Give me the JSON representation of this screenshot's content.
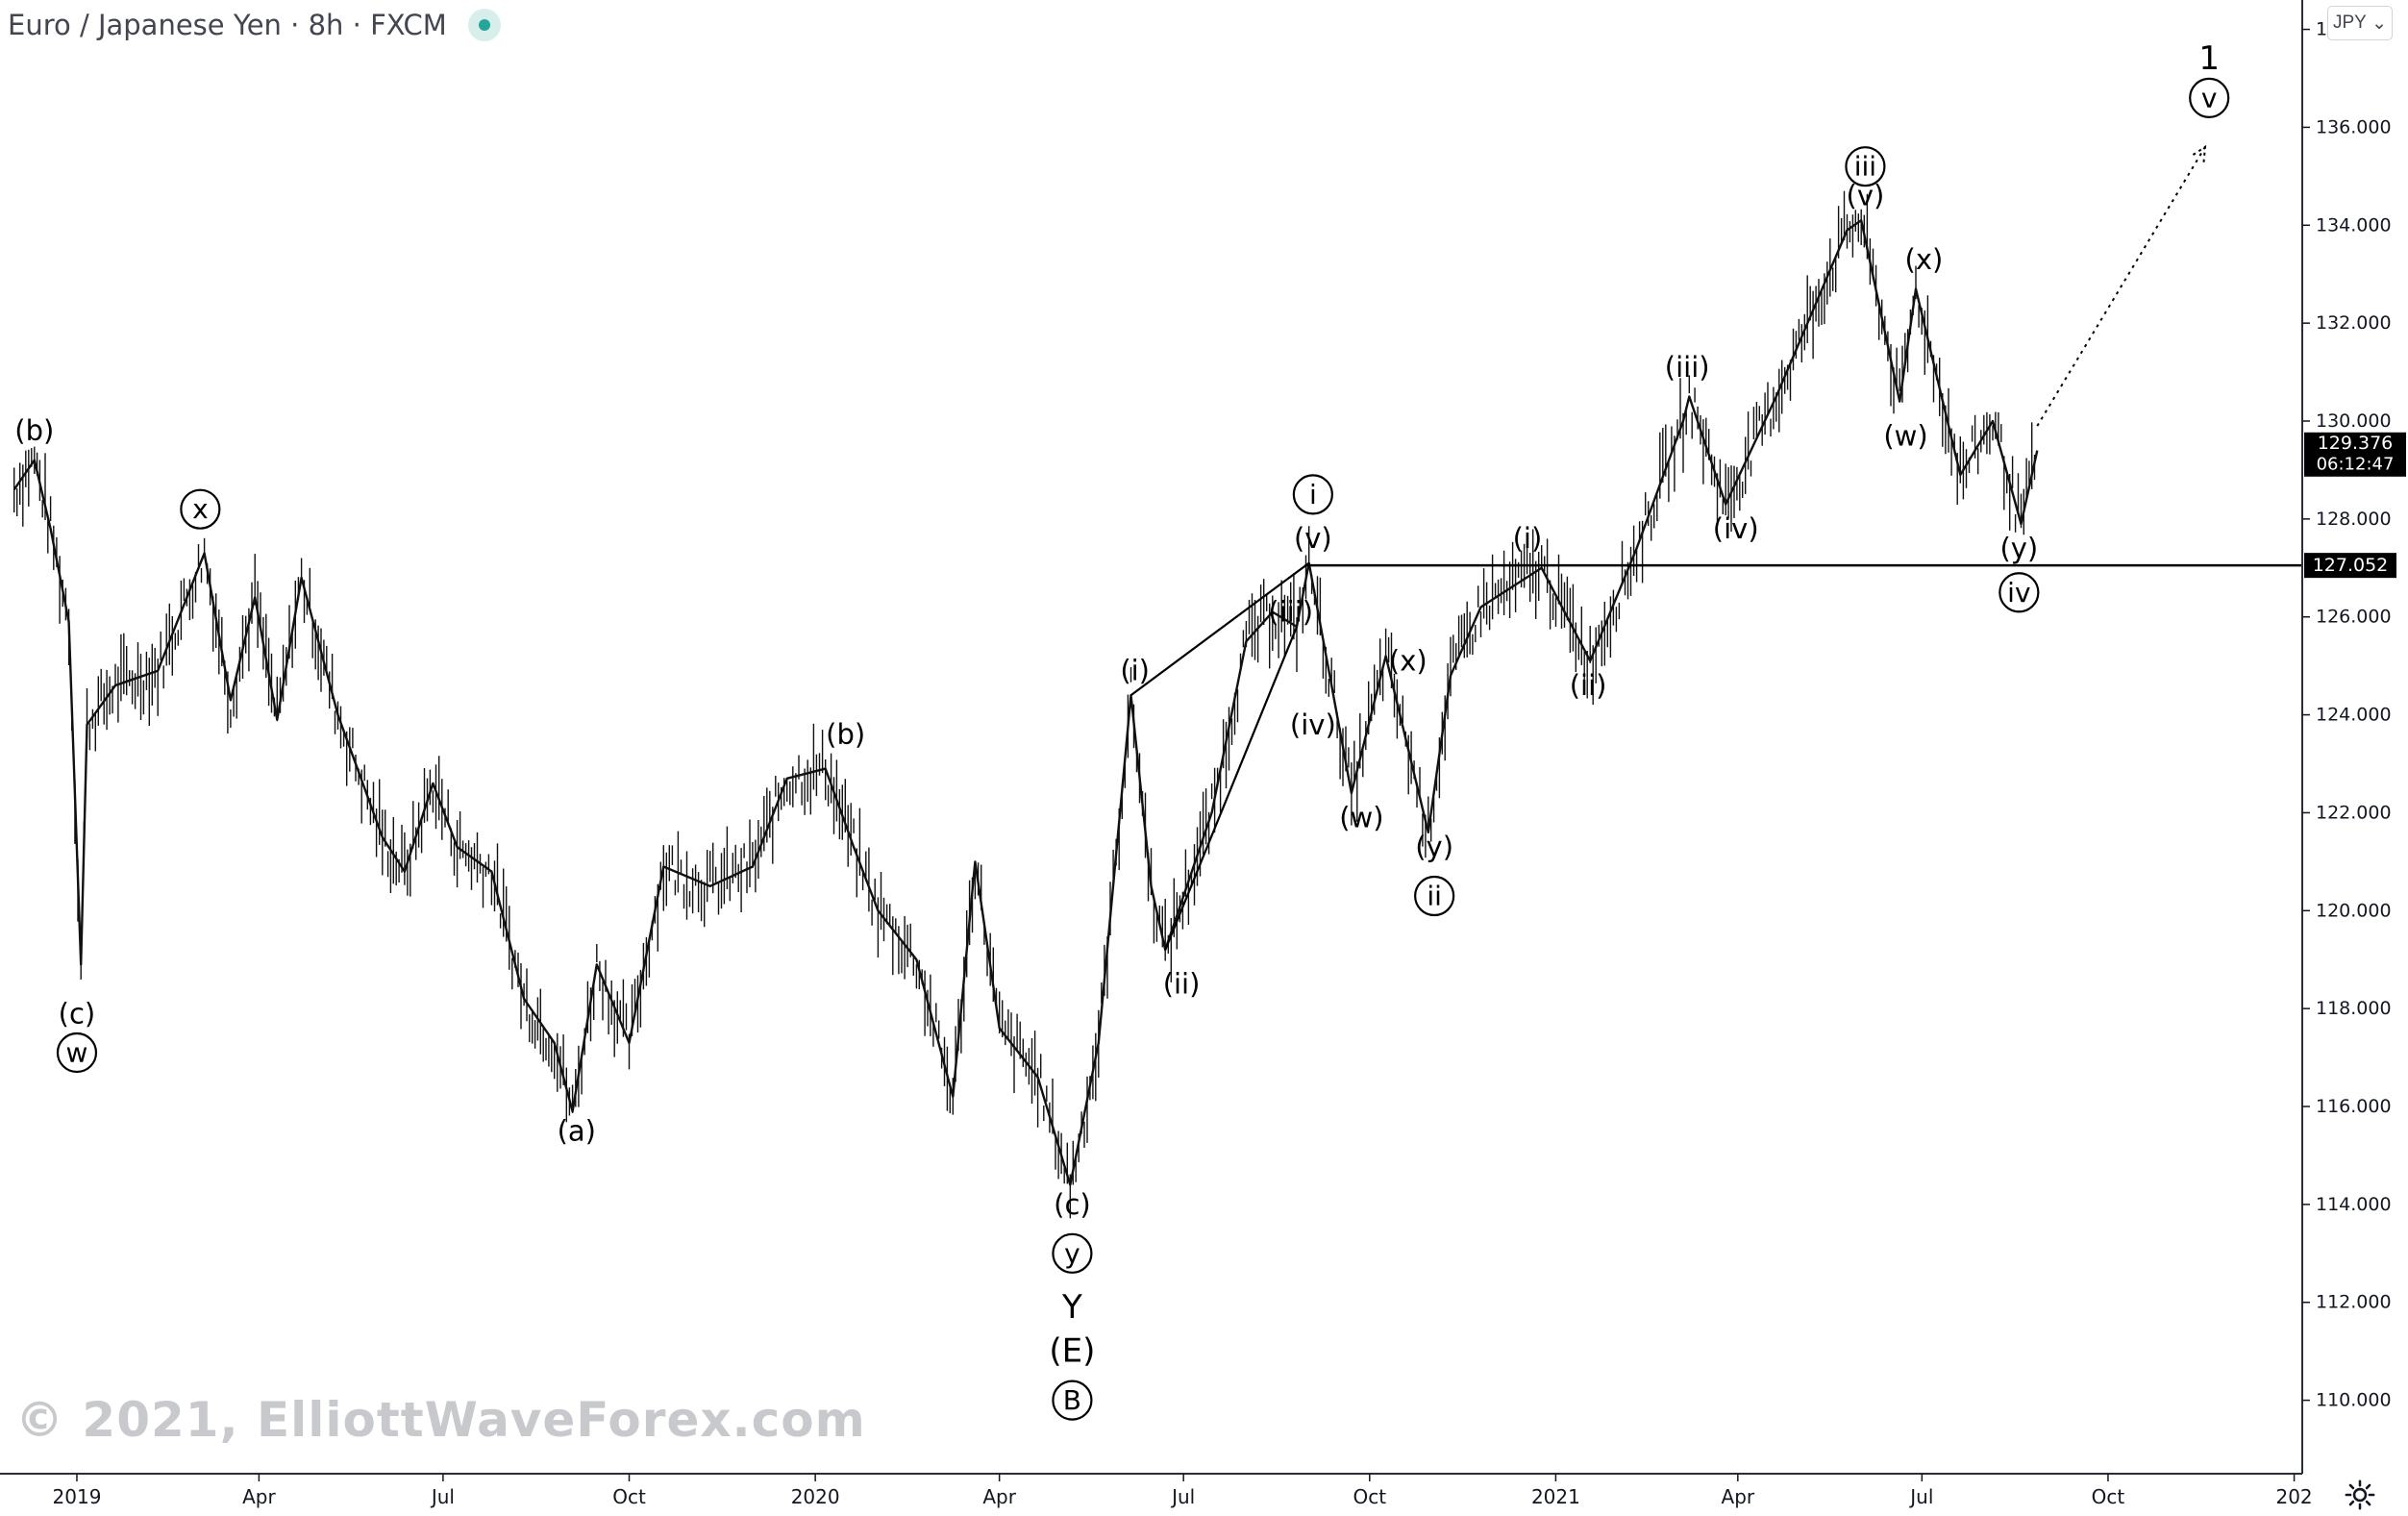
{
  "header": {
    "symbol": "Euro / Japanese Yen",
    "interval": "8h",
    "source": "FXCM",
    "currency_button": "JPY"
  },
  "watermark": "© 2021, ElliottWaveForex.com",
  "price_badges": {
    "last_price": "129.376",
    "countdown": "06:12:47",
    "level_price": "127.052"
  },
  "colors": {
    "candles": "#111111",
    "axis_text": "#131722",
    "grid_border": "#2a2e39",
    "badge_bg": "#000000",
    "watermark": "#c8c9cd",
    "live_dot": "#26a69a"
  },
  "chart_data": {
    "type": "line",
    "title": "Euro / Japanese Yen · 8h · FXCM",
    "xlabel": "",
    "ylabel": "",
    "ylim": [
      108.5,
      138.6
    ],
    "xlim": [
      "2019-01-01",
      "2022-01-05"
    ],
    "y_ticks": [
      110,
      112,
      114,
      116,
      118,
      120,
      122,
      124,
      126,
      128,
      130,
      132,
      134,
      136,
      138
    ],
    "y_tick_labels": [
      "110.000",
      "112.000",
      "114.000",
      "116.000",
      "118.000",
      "120.000",
      "122.000",
      "124.000",
      "126.000",
      "128.000",
      "130.000",
      "132.000",
      "134.000",
      "136.000",
      "138.000"
    ],
    "x_ticks": [
      {
        "date": "2019-01-01",
        "label": "2019"
      },
      {
        "date": "2019-04-01",
        "label": "Apr"
      },
      {
        "date": "2019-07-01",
        "label": "Jul"
      },
      {
        "date": "2019-10-01",
        "label": "Oct"
      },
      {
        "date": "2020-01-01",
        "label": "2020"
      },
      {
        "date": "2020-04-01",
        "label": "Apr"
      },
      {
        "date": "2020-07-01",
        "label": "Jul"
      },
      {
        "date": "2020-10-01",
        "label": "Oct"
      },
      {
        "date": "2021-01-01",
        "label": "2021"
      },
      {
        "date": "2021-04-01",
        "label": "Apr"
      },
      {
        "date": "2021-07-01",
        "label": "Jul"
      },
      {
        "date": "2021-10-01",
        "label": "Oct"
      },
      {
        "date": "2022-01-01",
        "label": "202"
      }
    ],
    "grid": false,
    "series": [
      {
        "values": [
          {
            "x": "2018-12-01",
            "y": 128.6
          },
          {
            "x": "2018-12-11",
            "y": 129.2
          },
          {
            "x": "2018-12-19",
            "y": 127.8
          },
          {
            "x": "2018-12-28",
            "y": 125.9
          },
          {
            "x": "2019-01-03",
            "y": 118.9
          },
          {
            "x": "2019-01-06",
            "y": 123.8
          },
          {
            "x": "2019-01-20",
            "y": 124.6
          },
          {
            "x": "2019-02-10",
            "y": 124.9
          },
          {
            "x": "2019-03-05",
            "y": 127.3
          },
          {
            "x": "2019-03-18",
            "y": 124.3
          },
          {
            "x": "2019-03-30",
            "y": 126.4
          },
          {
            "x": "2019-04-10",
            "y": 123.9
          },
          {
            "x": "2019-04-22",
            "y": 126.8
          },
          {
            "x": "2019-05-10",
            "y": 124.0
          },
          {
            "x": "2019-06-01",
            "y": 121.5
          },
          {
            "x": "2019-06-12",
            "y": 120.8
          },
          {
            "x": "2019-06-26",
            "y": 122.6
          },
          {
            "x": "2019-07-08",
            "y": 121.3
          },
          {
            "x": "2019-07-25",
            "y": 120.8
          },
          {
            "x": "2019-08-10",
            "y": 118.2
          },
          {
            "x": "2019-08-25",
            "y": 117.3
          },
          {
            "x": "2019-09-03",
            "y": 115.9
          },
          {
            "x": "2019-09-15",
            "y": 118.9
          },
          {
            "x": "2019-10-01",
            "y": 117.3
          },
          {
            "x": "2019-10-18",
            "y": 120.9
          },
          {
            "x": "2019-11-10",
            "y": 120.5
          },
          {
            "x": "2019-12-01",
            "y": 120.9
          },
          {
            "x": "2019-12-18",
            "y": 122.7
          },
          {
            "x": "2020-01-06",
            "y": 122.9
          },
          {
            "x": "2020-01-20",
            "y": 121.3
          },
          {
            "x": "2020-02-01",
            "y": 120.0
          },
          {
            "x": "2020-02-20",
            "y": 119.0
          },
          {
            "x": "2020-03-09",
            "y": 116.2
          },
          {
            "x": "2020-03-20",
            "y": 121.0
          },
          {
            "x": "2020-04-01",
            "y": 117.6
          },
          {
            "x": "2020-04-20",
            "y": 116.6
          },
          {
            "x": "2020-05-06",
            "y": 114.4
          },
          {
            "x": "2020-05-20",
            "y": 117.3
          },
          {
            "x": "2020-06-05",
            "y": 124.4
          },
          {
            "x": "2020-06-15",
            "y": 120.5
          },
          {
            "x": "2020-06-22",
            "y": 119.2
          },
          {
            "x": "2020-07-15",
            "y": 122.0
          },
          {
            "x": "2020-08-01",
            "y": 125.5
          },
          {
            "x": "2020-08-14",
            "y": 126.1
          },
          {
            "x": "2020-08-26",
            "y": 125.8
          },
          {
            "x": "2020-09-01",
            "y": 127.1
          },
          {
            "x": "2020-09-22",
            "y": 122.4
          },
          {
            "x": "2020-10-09",
            "y": 125.2
          },
          {
            "x": "2020-10-30",
            "y": 121.6
          },
          {
            "x": "2020-11-10",
            "y": 124.8
          },
          {
            "x": "2020-11-25",
            "y": 126.2
          },
          {
            "x": "2020-12-25",
            "y": 127.0
          },
          {
            "x": "2021-01-18",
            "y": 125.1
          },
          {
            "x": "2021-02-10",
            "y": 127.4
          },
          {
            "x": "2021-03-05",
            "y": 130.0
          },
          {
            "x": "2021-03-08",
            "y": 130.5
          },
          {
            "x": "2021-03-26",
            "y": 128.3
          },
          {
            "x": "2021-04-20",
            "y": 130.5
          },
          {
            "x": "2021-05-25",
            "y": 133.9
          },
          {
            "x": "2021-06-01",
            "y": 134.1
          },
          {
            "x": "2021-06-20",
            "y": 130.4
          },
          {
            "x": "2021-06-28",
            "y": 132.7
          },
          {
            "x": "2021-07-20",
            "y": 128.9
          },
          {
            "x": "2021-08-05",
            "y": 130.0
          },
          {
            "x": "2021-08-19",
            "y": 127.9
          },
          {
            "x": "2021-08-27",
            "y": 129.4
          }
        ]
      }
    ],
    "horizontal_lines": [
      {
        "y": 127.052,
        "from": "2020-08-30",
        "label": "127.052"
      }
    ],
    "trend_lines": [
      {
        "from": {
          "x": "2020-06-05",
          "y": 124.4
        },
        "to": {
          "x": "2020-09-01",
          "y": 127.1
        }
      },
      {
        "from": {
          "x": "2020-06-22",
          "y": 119.2
        },
        "to": {
          "x": "2020-08-26",
          "y": 125.8
        }
      }
    ],
    "projection": {
      "from": {
        "x": "2021-08-27",
        "y": 129.9
      },
      "to": {
        "x": "2021-11-18",
        "y": 135.6
      },
      "style": "dotted-arrow"
    },
    "annotations": [
      {
        "text": "(b)",
        "x": "2018-12-11",
        "y": 129.8,
        "circled": false
      },
      {
        "text": "(c)",
        "x": "2019-01-01",
        "y": 117.9,
        "circled": false
      },
      {
        "text": "w",
        "x": "2019-01-01",
        "y": 117.1,
        "circled": true
      },
      {
        "text": "x",
        "x": "2019-03-03",
        "y": 128.2,
        "circled": true
      },
      {
        "text": "(a)",
        "x": "2019-09-05",
        "y": 115.5,
        "circled": false
      },
      {
        "text": "(b)",
        "x": "2020-01-16",
        "y": 123.6,
        "circled": false
      },
      {
        "text": "(c)",
        "x": "2020-05-07",
        "y": 114.0,
        "circled": false
      },
      {
        "text": "y",
        "x": "2020-05-07",
        "y": 113.0,
        "circled": true
      },
      {
        "text": "Y",
        "x": "2020-05-07",
        "y": 111.9,
        "circled": false
      },
      {
        "text": "(E)",
        "x": "2020-05-07",
        "y": 111.0,
        "circled": false
      },
      {
        "text": "B",
        "x": "2020-05-07",
        "y": 110.0,
        "circled": true
      },
      {
        "text": "(i)",
        "x": "2020-06-07",
        "y": 124.9,
        "circled": false
      },
      {
        "text": "(ii)",
        "x": "2020-06-30",
        "y": 118.5,
        "circled": false
      },
      {
        "text": "(iii)",
        "x": "2020-08-23",
        "y": 126.1,
        "circled": false
      },
      {
        "text": "(iv)",
        "x": "2020-09-03",
        "y": 123.8,
        "circled": false
      },
      {
        "text": "(v)",
        "x": "2020-09-03",
        "y": 127.6,
        "circled": false
      },
      {
        "text": "i",
        "x": "2020-09-03",
        "y": 128.5,
        "circled": true
      },
      {
        "text": "(w)",
        "x": "2020-09-27",
        "y": 121.9,
        "circled": false
      },
      {
        "text": "(x)",
        "x": "2020-10-20",
        "y": 125.1,
        "circled": false
      },
      {
        "text": "(y)",
        "x": "2020-11-02",
        "y": 121.3,
        "circled": false
      },
      {
        "text": "ii",
        "x": "2020-11-02",
        "y": 120.3,
        "circled": true
      },
      {
        "text": "(i)",
        "x": "2020-12-18",
        "y": 127.6,
        "circled": false
      },
      {
        "text": "(ii)",
        "x": "2021-01-17",
        "y": 124.6,
        "circled": false
      },
      {
        "text": "(iii)",
        "x": "2021-03-07",
        "y": 131.1,
        "circled": false
      },
      {
        "text": "(iv)",
        "x": "2021-03-31",
        "y": 127.8,
        "circled": false
      },
      {
        "text": "(v)",
        "x": "2021-06-03",
        "y": 134.6,
        "circled": false
      },
      {
        "text": "iii",
        "x": "2021-06-03",
        "y": 135.2,
        "circled": true
      },
      {
        "text": "(w)",
        "x": "2021-06-23",
        "y": 129.7,
        "circled": false
      },
      {
        "text": "(x)",
        "x": "2021-07-02",
        "y": 133.3,
        "circled": false
      },
      {
        "text": "(y)",
        "x": "2021-08-18",
        "y": 127.4,
        "circled": false
      },
      {
        "text": "iv",
        "x": "2021-08-18",
        "y": 126.5,
        "circled": true
      },
      {
        "text": "1",
        "x": "2021-11-20",
        "y": 137.4,
        "circled": false
      },
      {
        "text": "v",
        "x": "2021-11-20",
        "y": 136.6,
        "circled": true
      }
    ]
  }
}
